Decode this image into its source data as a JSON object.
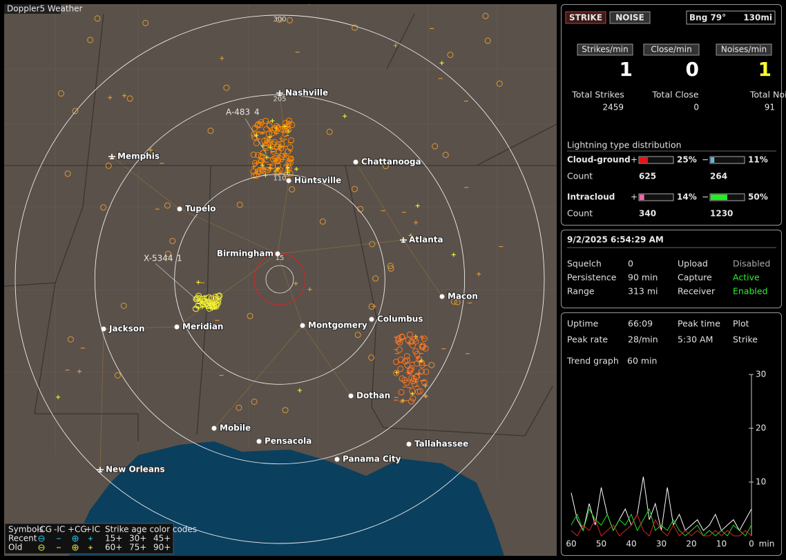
{
  "app_title": "Doppler5 Weather",
  "map": {
    "range_rings": [
      300,
      205,
      110,
      15
    ],
    "cities": [
      "Nashville",
      "Memphis",
      "Chattanooga",
      "Huntsville",
      "Tupelo",
      "Birmingham",
      "Atlanta",
      "Macon",
      "Jackson",
      "Meridian",
      "Montgomery",
      "Columbus",
      "Dothan",
      "Mobile",
      "Pensacola",
      "Tallahassee",
      "Panama City",
      "New Orleans"
    ],
    "storm_tags": [
      "A-483",
      "4",
      "X-5344",
      "1"
    ],
    "legend": {
      "header": [
        "Symbols",
        "-CG",
        "-IC",
        "+CG",
        "+IC",
        "Strike age color codes"
      ],
      "rows": [
        {
          "name": "Recent",
          "ages": [
            "15+",
            "30+",
            "45+"
          ]
        },
        {
          "name": "Old",
          "ages": [
            "60+",
            "75+",
            "90+"
          ]
        }
      ]
    }
  },
  "status": {
    "buttons": [
      "STRIKE",
      "NOISE"
    ],
    "bearing": "Bng 79°",
    "distance": "130mi",
    "rates": [
      {
        "label": "Strikes/min",
        "value": 1
      },
      {
        "label": "Close/min",
        "value": 0
      },
      {
        "label": "Noises/min",
        "value": 1
      }
    ],
    "totals": [
      {
        "label": "Total Strikes",
        "value": 2459
      },
      {
        "label": "Total Close",
        "value": 0
      },
      {
        "label": "Total Noises",
        "value": 91
      }
    ],
    "distribution": {
      "title": "Lightning type distribution",
      "count_label": "Count",
      "plus": "+",
      "minus": "−",
      "types": [
        {
          "name": "Cloud-ground",
          "plus_pct": {
            "value": 25,
            "label": "25%"
          },
          "minus_pct": {
            "value": 11,
            "label": "11%"
          },
          "plus_count": 625,
          "minus_count": 264
        },
        {
          "name": "Intracloud",
          "plus_pct": {
            "value": 14,
            "label": "14%"
          },
          "minus_pct": {
            "value": 50,
            "label": "50%"
          },
          "plus_count": 340,
          "minus_count": 1230
        }
      ]
    }
  },
  "settings": {
    "datetime": "9/2/2025 6:54:29 AM",
    "rows": [
      [
        "Squelch",
        "0",
        "Upload",
        "Disabled"
      ],
      [
        "Persistence",
        "90 min",
        "Capture",
        "Active"
      ],
      [
        "Range",
        "313 mi",
        "Receiver",
        "Enabled"
      ]
    ]
  },
  "stats": {
    "rows": [
      [
        "Uptime",
        "66:09",
        "Peak time",
        "Plot"
      ],
      [
        "Peak rate",
        "28/min",
        "5:30 AM",
        "Strike"
      ]
    ],
    "trend_label": "Trend graph",
    "trend_span": "60 min"
  },
  "chart_data": {
    "type": "line",
    "x_label": "min",
    "x": [
      60,
      58,
      56,
      54,
      52,
      50,
      48,
      46,
      44,
      42,
      40,
      38,
      36,
      34,
      32,
      30,
      28,
      26,
      24,
      22,
      20,
      18,
      16,
      14,
      12,
      10,
      8,
      6,
      4,
      2,
      0
    ],
    "xlim": [
      60,
      0
    ],
    "xticks": [
      60,
      50,
      40,
      30,
      20,
      10,
      0
    ],
    "ylim": [
      0,
      30
    ],
    "yticks": [
      10,
      20,
      30
    ],
    "series": [
      {
        "color": "#ffffff",
        "values": [
          8,
          3,
          1,
          6,
          2,
          9,
          4,
          1,
          3,
          5,
          2,
          4,
          11,
          3,
          6,
          1,
          9,
          2,
          4,
          1,
          2,
          3,
          1,
          2,
          4,
          1,
          2,
          3,
          1,
          3,
          5
        ]
      },
      {
        "color": "#22dd22",
        "values": [
          2,
          4,
          1,
          5,
          3,
          2,
          4,
          1,
          3,
          2,
          4,
          1,
          3,
          5,
          1,
          2,
          1,
          3,
          1,
          0,
          1,
          2,
          0,
          1,
          0,
          1,
          0,
          2,
          1,
          0,
          2
        ]
      },
      {
        "color": "#dd2222",
        "values": [
          1,
          0,
          2,
          1,
          3,
          0,
          1,
          2,
          0,
          1,
          2,
          4,
          1,
          0,
          3,
          1,
          0,
          2,
          0,
          1,
          0,
          1,
          0,
          0,
          1,
          0,
          1,
          0,
          0,
          1,
          0
        ]
      }
    ]
  }
}
